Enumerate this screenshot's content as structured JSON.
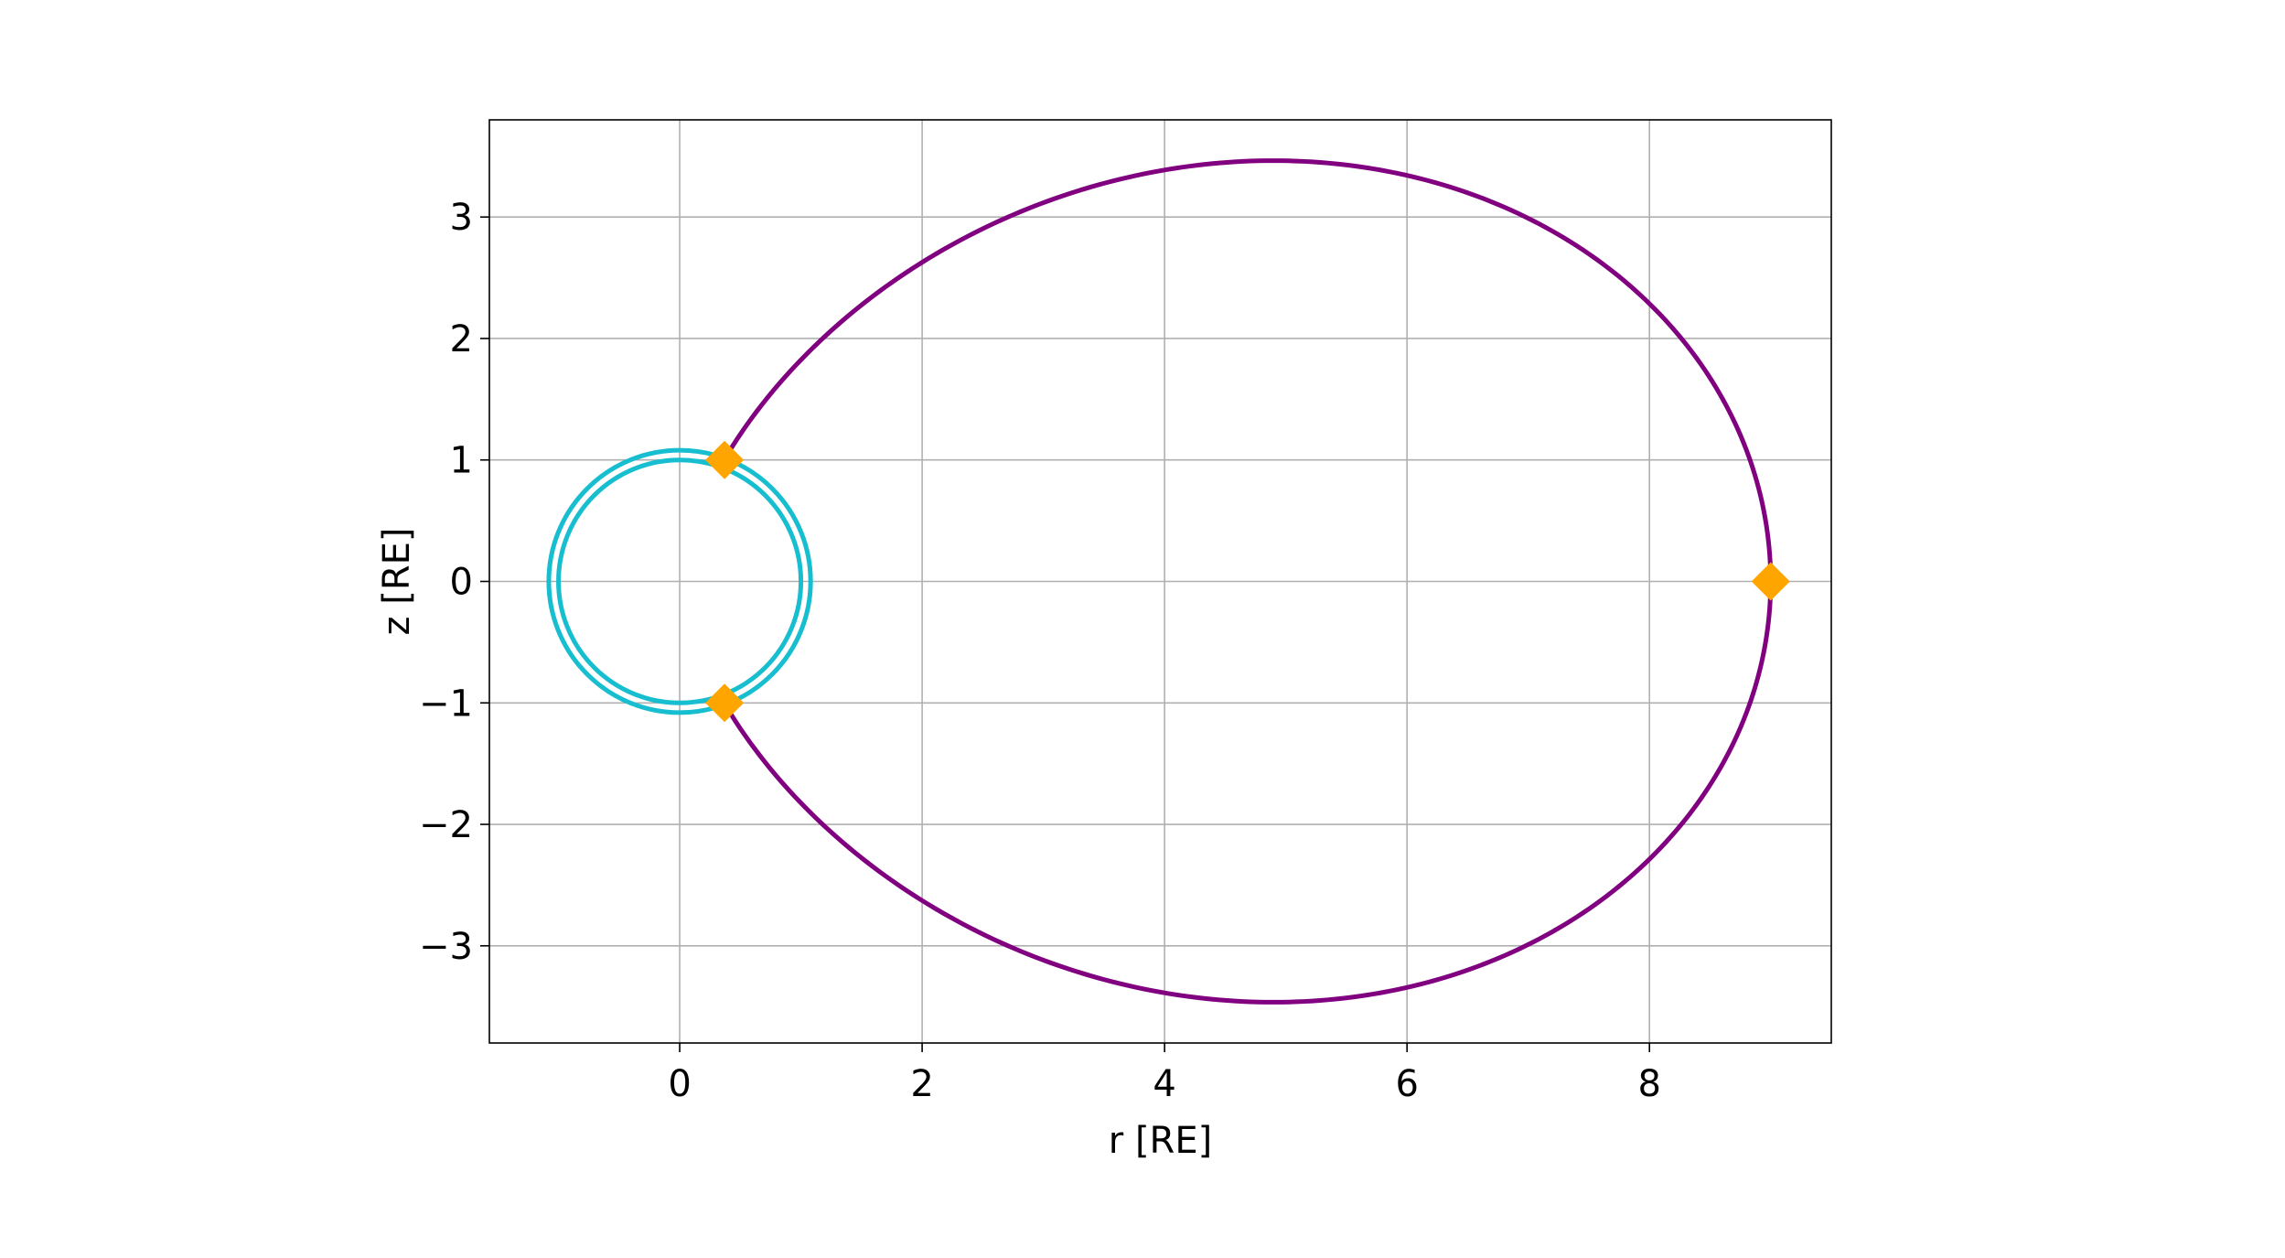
{
  "chart_data": {
    "type": "line",
    "title": "",
    "xlabel": "r [RE]",
    "ylabel": "z [RE]",
    "xlim": [
      -1.57,
      9.5
    ],
    "ylim": [
      -3.8,
      3.8
    ],
    "xticks": [
      0,
      2,
      4,
      6,
      8
    ],
    "xtick_labels": [
      "0",
      "2",
      "4",
      "6",
      "8"
    ],
    "yticks": [
      -3,
      -2,
      -1,
      0,
      1,
      2,
      3
    ],
    "ytick_labels": [
      "−3",
      "−2",
      "−1",
      "0",
      "1",
      "2",
      "3"
    ],
    "grid": true,
    "legend": "none",
    "series": [
      {
        "kind": "circle",
        "radius": 1.0,
        "center": [
          0,
          0
        ],
        "color": "#17becf"
      },
      {
        "kind": "circle",
        "radius": 1.08,
        "center": [
          0,
          0
        ],
        "color": "#17becf"
      },
      {
        "kind": "dipole-field-line",
        "L": 9.0,
        "color": "#800080"
      },
      {
        "kind": "markers",
        "marker": "diamond",
        "color": "#ffa500",
        "x": [
          0.37,
          0.37,
          9.0
        ],
        "y": [
          1.0,
          -1.0,
          0.0
        ]
      }
    ]
  }
}
